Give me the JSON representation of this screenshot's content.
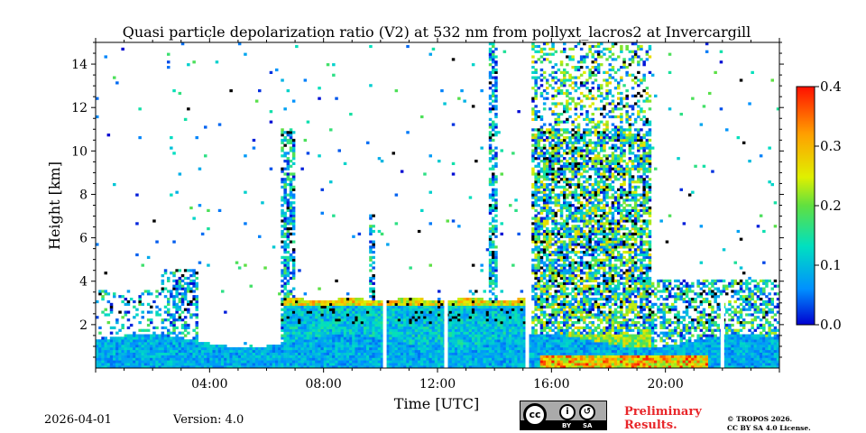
{
  "chart_data": {
    "type": "heatmap",
    "title": "Quasi particle depolarization ratio (V2) at 532 nm from pollyxt_lacros2 at Invercargill",
    "xlabel": "Time [UTC]",
    "ylabel": "Height [km]",
    "xlim_hours": [
      0,
      24
    ],
    "ylim_km": [
      0,
      15
    ],
    "x_ticks": [
      {
        "value": 4,
        "label": "04:00"
      },
      {
        "value": 8,
        "label": "08:00"
      },
      {
        "value": 12,
        "label": "12:00"
      },
      {
        "value": 16,
        "label": "16:00"
      },
      {
        "value": 20,
        "label": "20:00"
      }
    ],
    "y_ticks": [
      {
        "value": 2,
        "label": "2"
      },
      {
        "value": 4,
        "label": "4"
      },
      {
        "value": 6,
        "label": "6"
      },
      {
        "value": 8,
        "label": "8"
      },
      {
        "value": 10,
        "label": "10"
      },
      {
        "value": 12,
        "label": "12"
      },
      {
        "value": 14,
        "label": "14"
      }
    ],
    "colorbar": {
      "range": [
        0.0,
        0.4
      ],
      "ticks": [
        {
          "value": 0.0,
          "label": "0.0"
        },
        {
          "value": 0.1,
          "label": "0.1"
        },
        {
          "value": 0.2,
          "label": "0.2"
        },
        {
          "value": 0.3,
          "label": "0.3"
        },
        {
          "value": 0.4,
          "label": "0.4"
        }
      ],
      "colormap": [
        "#0000d0",
        "#0090ff",
        "#00e0c0",
        "#60e040",
        "#e0f000",
        "#ffa000",
        "#ff1000"
      ]
    },
    "data_gaps_hours": [
      10.15,
      12.3,
      15.15,
      22.0
    ],
    "regions": [
      {
        "name": "boundary layer",
        "t_start": 0,
        "t_end": 24,
        "h_top_km": 1.5,
        "typical_value": 0.08
      },
      {
        "name": "elevated aerosol layer",
        "t_start": 6.5,
        "t_end": 15,
        "h_bottom_km": 0.8,
        "h_top_km": 3.2,
        "typical_value": 0.1
      },
      {
        "name": "high depolarization near surface",
        "t_start": 15.2,
        "t_end": 21.5,
        "h_top_km": 1.0,
        "typical_value": 0.25
      },
      {
        "name": "noisy signal region",
        "t_start": 15.2,
        "t_end": 19.5,
        "h_bottom_km": 3.0,
        "h_top_km": 15.0,
        "typical_value": 0.1
      }
    ]
  },
  "footer": {
    "date": "2026-04-01",
    "version": "Version: 4.0",
    "preliminary_line1": "Preliminary",
    "preliminary_line2": "Results.",
    "copyright_line1": "© TROPOS 2026.",
    "copyright_line2": "CC BY SA 4.0 License.",
    "badge": {
      "by": "BY",
      "sa": "SA",
      "cc": "cc"
    }
  }
}
